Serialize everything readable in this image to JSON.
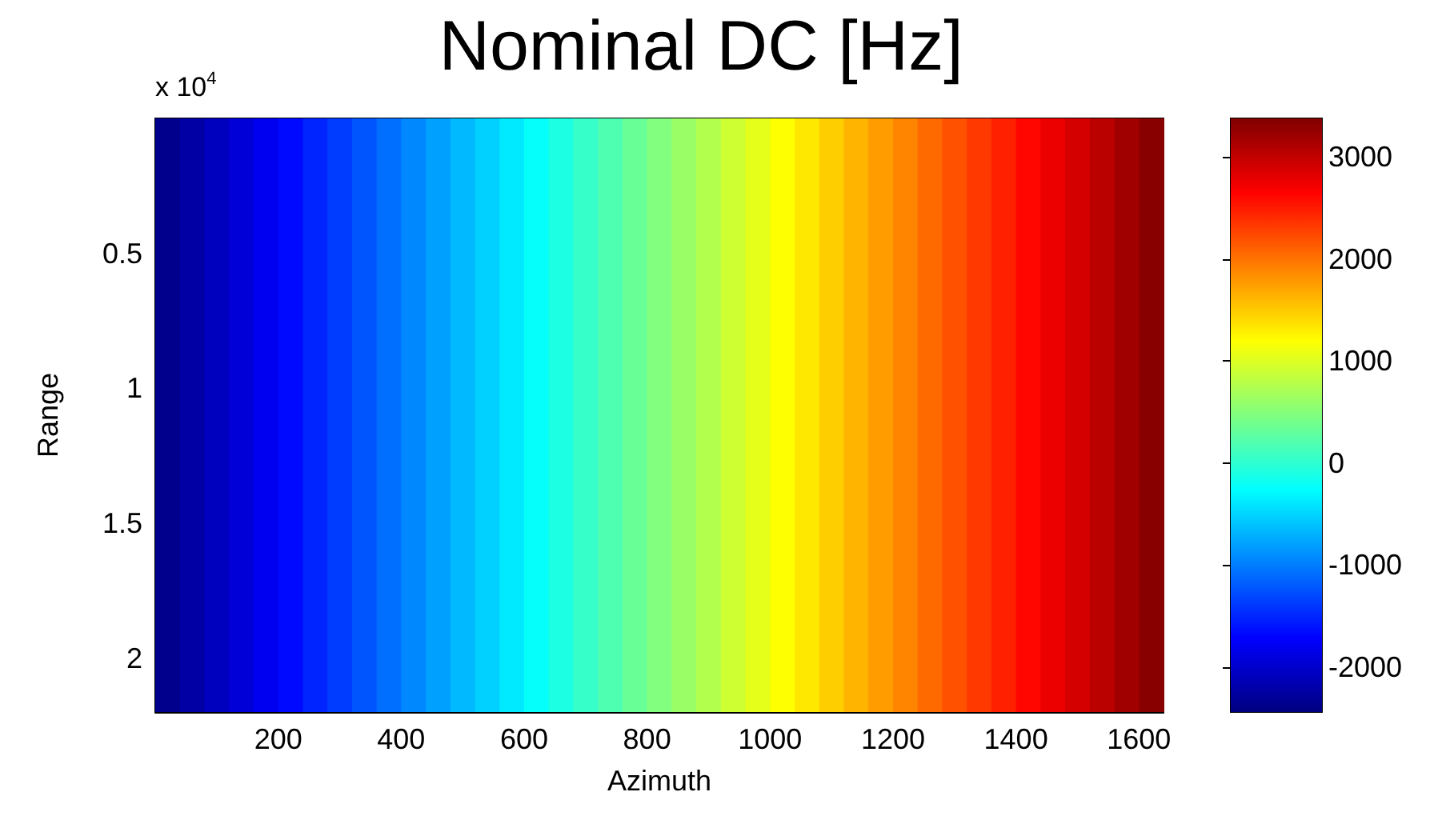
{
  "chart_data": {
    "type": "heatmap",
    "title": "Nominal DC [Hz]",
    "xlabel": "Azimuth",
    "ylabel": "Range",
    "annotations": [
      "x 10$^{4}$"
    ],
    "x": [
      20,
      60,
      100,
      140,
      180,
      220,
      260,
      300,
      340,
      380,
      420,
      460,
      500,
      540,
      580,
      620,
      660,
      700,
      740,
      780,
      820,
      860,
      900,
      940,
      980,
      1020,
      1060,
      1100,
      1140,
      1180,
      1220,
      1260,
      1300,
      1340,
      1380,
      1420,
      1460,
      1500,
      1540,
      1580,
      1620
    ],
    "cells": [
      [
        -2370,
        -2230,
        -2080,
        -1940,
        -1800,
        -1660,
        -1510,
        -1370,
        -1230,
        -1090,
        -940,
        -800,
        -660,
        -520,
        -380,
        -230,
        -90,
        50,
        190,
        340,
        480,
        620,
        760,
        910,
        1050,
        1190,
        1330,
        1480,
        1620,
        1760,
        1900,
        2050,
        2190,
        2330,
        2470,
        2620,
        2760,
        2900,
        3040,
        3190,
        3330
      ]
    ],
    "xlim": [
      0,
      1640
    ],
    "xticks": [
      200,
      400,
      600,
      800,
      1000,
      1200,
      1400,
      1600
    ],
    "ylim": [
      2.2,
      0
    ],
    "yticks": [
      0.5,
      1,
      1.5,
      2
    ],
    "clim": [
      -2440,
      3380
    ],
    "cticks": [
      -2000,
      -1000,
      0,
      1000,
      2000,
      3000
    ]
  }
}
